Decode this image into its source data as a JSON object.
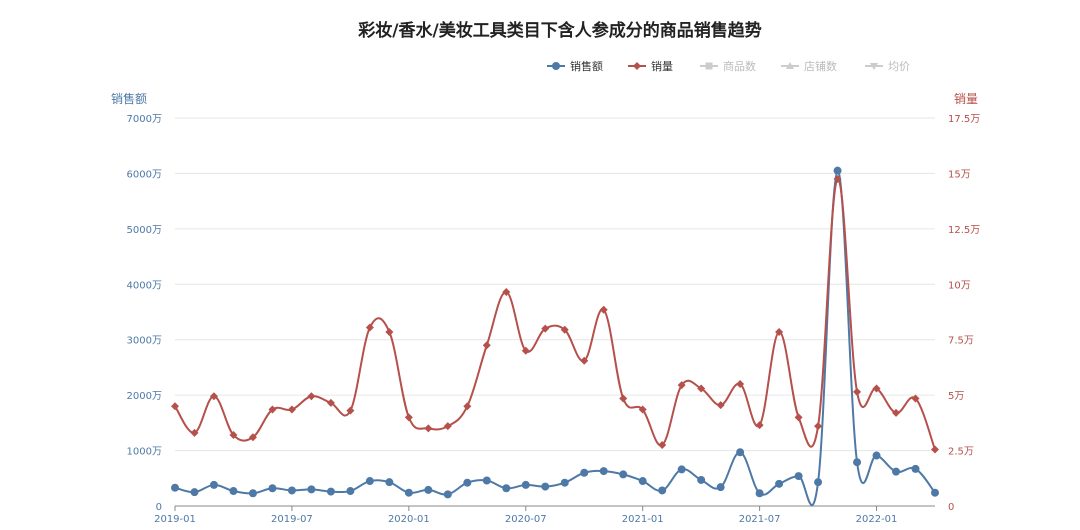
{
  "chart_data": {
    "type": "line",
    "title": "彩妆/香水/美妆工具类目下含人参成分的商品销售趋势",
    "legend": {
      "position": "top-right",
      "items": [
        {
          "label": "销售额",
          "color": "#4e79a7",
          "marker": "circle",
          "active": true
        },
        {
          "label": "销量",
          "color": "#b5504b",
          "marker": "diamond",
          "active": true
        },
        {
          "label": "商品数",
          "color": "#cccccc",
          "marker": "square",
          "active": false
        },
        {
          "label": "店铺数",
          "color": "#cccccc",
          "marker": "triangle",
          "active": false
        },
        {
          "label": "均价",
          "color": "#cccccc",
          "marker": "triangle-down",
          "active": false
        }
      ]
    },
    "y_left": {
      "name": "销售额",
      "min": 0,
      "max": 70000000,
      "step": 10000000,
      "unit": "万",
      "divisor": 10000,
      "color": "#4e79a7"
    },
    "y_right": {
      "name": "销量",
      "min": 0,
      "max": 175000,
      "step": 25000,
      "unit": "万",
      "divisor": 10000,
      "color": "#b5504b"
    },
    "x_tick_labels": [
      "2019-01",
      "2019-07",
      "2020-01",
      "2020-07",
      "2021-01",
      "2021-07",
      "2022-01"
    ],
    "x_tick_every": 6,
    "grid": true,
    "x": [
      "2019-01",
      "2019-02",
      "2019-03",
      "2019-04",
      "2019-05",
      "2019-06",
      "2019-07",
      "2019-08",
      "2019-09",
      "2019-10",
      "2019-11",
      "2019-12",
      "2020-01",
      "2020-02",
      "2020-03",
      "2020-04",
      "2020-05",
      "2020-06",
      "2020-07",
      "2020-08",
      "2020-09",
      "2020-10",
      "2020-11",
      "2020-12",
      "2021-01",
      "2021-02",
      "2021-03",
      "2021-04",
      "2021-05",
      "2021-06",
      "2021-07",
      "2021-08",
      "2021-09",
      "2021-10",
      "2021-11",
      "2021-12",
      "2022-01",
      "2022-02",
      "2022-03",
      "2022-04"
    ],
    "series": [
      {
        "name": "销售额",
        "axis": "left",
        "color": "#4e79a7",
        "values": [
          3300000,
          2500000,
          3800000,
          2700000,
          2300000,
          3200000,
          2800000,
          3000000,
          2600000,
          2700000,
          4500000,
          4300000,
          2400000,
          2900000,
          2100000,
          4200000,
          4600000,
          3200000,
          3800000,
          3500000,
          4200000,
          6000000,
          6300000,
          5700000,
          4500000,
          2800000,
          6600000,
          4700000,
          3400000,
          9700000,
          2300000,
          4000000,
          5400000,
          4300000,
          60500000,
          7900000,
          9100000,
          6200000,
          6700000,
          2400000
        ]
      },
      {
        "name": "销量",
        "axis": "right",
        "color": "#b5504b",
        "values": [
          45000,
          33000,
          49500,
          32000,
          31000,
          43500,
          43500,
          49500,
          46500,
          43000,
          80500,
          78500,
          40000,
          35000,
          36000,
          45000,
          72500,
          96500,
          70000,
          80000,
          79500,
          65500,
          88500,
          48500,
          43500,
          27500,
          54500,
          53000,
          45500,
          55000,
          36500,
          78500,
          40000,
          36000,
          147500,
          51500,
          53000,
          42000,
          48500,
          25500
        ]
      }
    ]
  }
}
